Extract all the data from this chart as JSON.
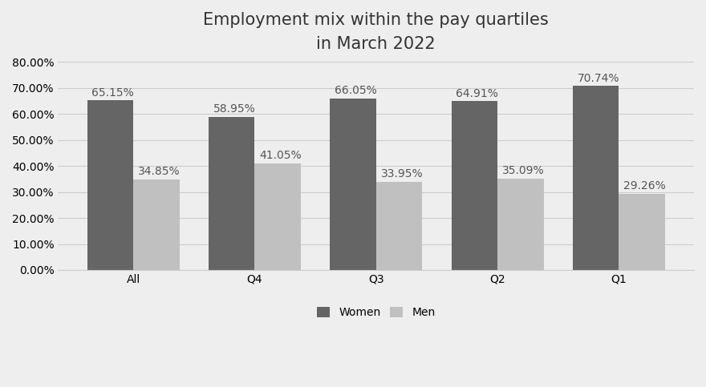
{
  "title_line1": "Employment mix within the pay quartiles",
  "title_line2": "in March 2022",
  "categories": [
    "All",
    "Q4",
    "Q3",
    "Q2",
    "Q1"
  ],
  "women_values": [
    65.15,
    58.95,
    66.05,
    64.91,
    70.74
  ],
  "men_values": [
    34.85,
    41.05,
    33.95,
    35.09,
    29.26
  ],
  "women_color": "#656565",
  "men_color": "#c0c0c0",
  "background_color": "#eeeeee",
  "bar_width": 0.38,
  "ylim": [
    0,
    80
  ],
  "yticks": [
    0,
    10,
    20,
    30,
    40,
    50,
    60,
    70,
    80
  ],
  "legend_labels": [
    "Women",
    "Men"
  ],
  "title_fontsize": 15,
  "tick_fontsize": 10,
  "label_fontsize": 10,
  "legend_fontsize": 10
}
